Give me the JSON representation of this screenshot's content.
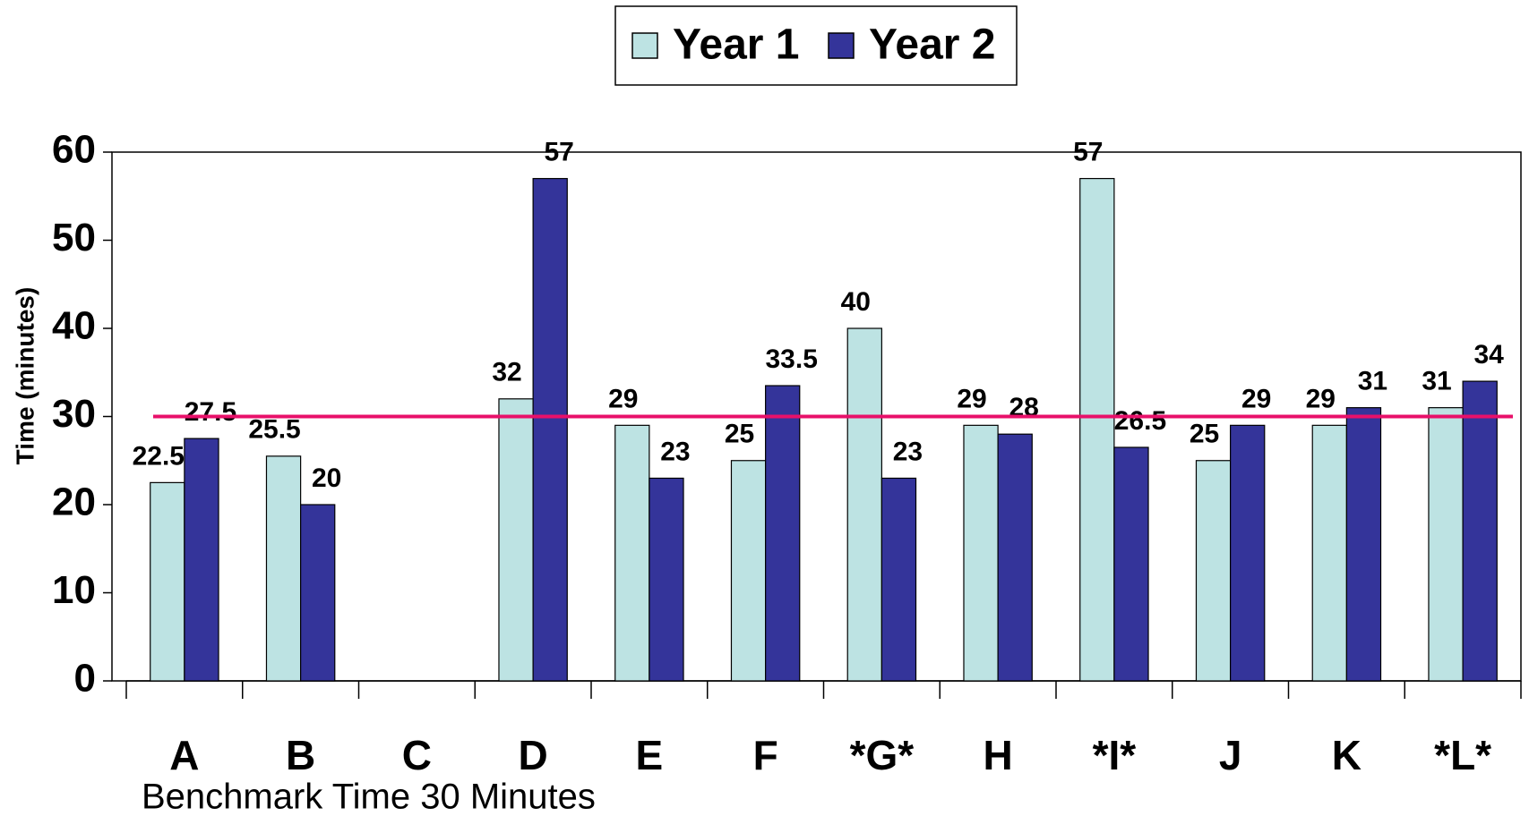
{
  "chart_data": {
    "type": "bar",
    "categories": [
      "A",
      "B",
      "C",
      "D",
      "E",
      "F",
      "*G*",
      "H",
      "*I*",
      "J",
      "K",
      "*L*"
    ],
    "series": [
      {
        "name": "Year 1",
        "color": "#bde3e3",
        "values": [
          22.5,
          25.5,
          null,
          32,
          29,
          25,
          40,
          29,
          57,
          25,
          29,
          31
        ]
      },
      {
        "name": "Year 2",
        "color": "#34349a",
        "values": [
          27.5,
          20,
          null,
          57,
          23,
          33.5,
          23,
          28,
          26.5,
          29,
          31,
          34
        ]
      }
    ],
    "ylabel": "Time (minutes)",
    "ylim": [
      0,
      60
    ],
    "yticks": [
      0,
      10,
      20,
      30,
      40,
      50,
      60
    ],
    "benchmark": 30,
    "benchmark_color": "#e8106a",
    "caption": "Benchmark Time 30 Minutes",
    "legend": "top"
  }
}
